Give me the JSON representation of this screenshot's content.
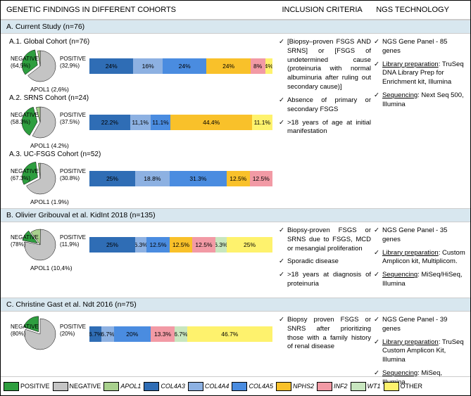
{
  "headers": {
    "genetic": "GENETIC FINDINGS IN DIFFERENT COHORTS",
    "inclusion": "INCLUSION CRITERIA",
    "ngs": "NGS TECHNOLOGY"
  },
  "colors": {
    "positive": "#2e9e3f",
    "negative": "#c4c4c4",
    "apol1": "#a8d08d",
    "col4a3": "#2f6db5",
    "col4a4": "#8db1e2",
    "col4a5": "#4a8ce0",
    "nphs2": "#f9c12a",
    "inf2": "#f29aa5",
    "wt1": "#c8e6bf",
    "other": "#fef26d",
    "border": "#000",
    "sectionBg": "#d8e7ef"
  },
  "sections": [
    {
      "title": "A. Current Study (n=76)",
      "cohorts": [
        {
          "label": "A.1. Global Cohort (n=76)",
          "pie": {
            "negative": 64.5,
            "positive": 32.9,
            "apol1": 2.6,
            "neg_label": "NEGATIVE",
            "pos_label": "POSITIVE",
            "apol_label": "APOL1 (2,6%)",
            "neg_pct": "(64,5%)",
            "pos_pct": "(32,9%)"
          },
          "bars": [
            {
              "key": "col4a3",
              "pct": 24,
              "label": "24%"
            },
            {
              "key": "col4a4",
              "pct": 16,
              "label": "16%"
            },
            {
              "key": "col4a5",
              "pct": 24,
              "label": "24%"
            },
            {
              "key": "nphs2",
              "pct": 24,
              "label": "24%"
            },
            {
              "key": "inf2",
              "pct": 8,
              "label": "8%"
            },
            {
              "key": "other",
              "pct": 4,
              "label": "4%"
            }
          ]
        },
        {
          "label": "A.2. SRNS Cohort (n=24)",
          "pie": {
            "negative": 58.3,
            "positive": 37.5,
            "apol1": 4.2,
            "neg_label": "NEGATIVE",
            "pos_label": "POSITIVE",
            "apol_label": "APOL1 (4.2%)",
            "neg_pct": "(58.3%)",
            "pos_pct": "(37.5%)"
          },
          "bars": [
            {
              "key": "col4a3",
              "pct": 22.2,
              "label": "22.2%"
            },
            {
              "key": "col4a4",
              "pct": 11.1,
              "label": "11,1%"
            },
            {
              "key": "col4a5",
              "pct": 11.1,
              "label": "11.1%"
            },
            {
              "key": "nphs2",
              "pct": 44.4,
              "label": "44.4%"
            },
            {
              "key": "other",
              "pct": 11.1,
              "label": "11.1%"
            }
          ]
        },
        {
          "label": "A.3. UC-FSGS Cohort (n=52)",
          "pie": {
            "negative": 67.3,
            "positive": 30.8,
            "apol1": 1.9,
            "neg_label": "NEGATIVE",
            "pos_label": "POSITIVE",
            "apol_label": "APOL1 (1.9%)",
            "neg_pct": "(67.3%)",
            "pos_pct": "(30.8%)"
          },
          "bars": [
            {
              "key": "col4a3",
              "pct": 25,
              "label": "25%"
            },
            {
              "key": "col4a4",
              "pct": 18.8,
              "label": "18.8%"
            },
            {
              "key": "col4a5",
              "pct": 31.3,
              "label": "31.3%"
            },
            {
              "key": "nphs2",
              "pct": 12.5,
              "label": "12.5%"
            },
            {
              "key": "inf2",
              "pct": 12.5,
              "label": "12.5%"
            }
          ]
        }
      ],
      "inclusion": [
        "[Biopsy–proven FSGS AND SRNS] or [FSGS of undetermined cause (proteinuria with normal albuminuria after ruling out secondary cause)]",
        "Absence of primary or secondary FSGS",
        ">18 years of age at initial manifestation"
      ],
      "ngs": [
        {
          "plain": "NGS Gene Panel - 85 genes"
        },
        {
          "ul": "Library preparation",
          "rest": ": TruSeq DNA Library Prep for Enrichment kit, Illumina"
        },
        {
          "ul": "Sequencing",
          "rest": ": Next Seq 500, Illumina"
        }
      ]
    },
    {
      "title": "B. Olivier Gribouval et al. KidInt 2018 (n=135)",
      "cohorts": [
        {
          "label": "",
          "pie": {
            "negative": 78,
            "positive": 11.9,
            "apol1": 10.4,
            "neg_label": "NEGATIVE",
            "pos_label": "POSITIVE",
            "apol_label": "APOL1 (10,4%)",
            "neg_pct": "(78%)",
            "pos_pct": "(11,9%)"
          },
          "bars": [
            {
              "key": "col4a3",
              "pct": 25,
              "label": "25%"
            },
            {
              "key": "col4a4",
              "pct": 6.3,
              "label": "6.3%"
            },
            {
              "key": "col4a5",
              "pct": 12.5,
              "label": "12.5%"
            },
            {
              "key": "nphs2",
              "pct": 12.5,
              "label": "12.5%"
            },
            {
              "key": "inf2",
              "pct": 12.5,
              "label": "12.5%"
            },
            {
              "key": "wt1",
              "pct": 6.3,
              "label": "6.3%"
            },
            {
              "key": "other",
              "pct": 25,
              "label": "25%"
            }
          ]
        }
      ],
      "inclusion": [
        "Biopsy-proven FSGS or SRNS due to FSGS, MCD or mesangial proliferation",
        "Sporadic disease",
        ">18 years at diagnosis of proteinuria"
      ],
      "ngs": [
        {
          "plain": "NGS Gene Panel - 35 genes"
        },
        {
          "ul": "Library preparation",
          "rest": ": Custom Amplicon kit, Multiplicom."
        },
        {
          "ul": "Sequencing",
          "rest": ": MiSeq/HiSeq, Illumina"
        }
      ]
    },
    {
      "title": "C. Christine Gast et al. Ndt 2016 (n=75)",
      "cohorts": [
        {
          "label": "",
          "pie": {
            "negative": 80,
            "positive": 20,
            "apol1": 0,
            "neg_label": "NEGATIVE",
            "pos_label": "POSITIVE",
            "apol_label": "",
            "neg_pct": "(80%)",
            "pos_pct": "(20%)"
          },
          "bars": [
            {
              "key": "col4a3",
              "pct": 6.7,
              "label": "6.7%"
            },
            {
              "key": "col4a4",
              "pct": 6.7,
              "label": "6.7%"
            },
            {
              "key": "col4a5",
              "pct": 20,
              "label": "20%"
            },
            {
              "key": "inf2",
              "pct": 13.3,
              "label": "13.3%"
            },
            {
              "key": "wt1",
              "pct": 6.7,
              "label": "6.7%"
            },
            {
              "key": "other",
              "pct": 46.7,
              "label": "46.7%"
            }
          ]
        }
      ],
      "inclusion": [
        "Biopsy proven FSGS or SNRS after prioritizing those with a family history of renal disease"
      ],
      "ngs": [
        {
          "plain": "NGS Gene Panel - 39 genes"
        },
        {
          "ul": "Library preparation",
          "rest": ": TruSeq Custom Amplicon Kit, Illumina"
        },
        {
          "ul": "Sequencing",
          "rest": ": MiSeq, Illumina"
        }
      ]
    }
  ],
  "legend": [
    {
      "key": "positive",
      "label": "POSITIVE",
      "italic": false
    },
    {
      "key": "negative",
      "label": "NEGATIVE",
      "italic": false
    },
    {
      "key": "apol1",
      "label": "APOL1",
      "italic": true
    },
    {
      "key": "col4a3",
      "label": "COL4A3",
      "italic": true
    },
    {
      "key": "col4a4",
      "label": "COL4A4",
      "italic": true
    },
    {
      "key": "col4a5",
      "label": "COL4A5",
      "italic": true
    },
    {
      "key": "nphs2",
      "label": "NPHS2",
      "italic": true
    },
    {
      "key": "inf2",
      "label": "INF2",
      "italic": true
    },
    {
      "key": "wt1",
      "label": "WT1",
      "italic": true
    },
    {
      "key": "other",
      "label": "OTHER",
      "italic": false
    }
  ]
}
